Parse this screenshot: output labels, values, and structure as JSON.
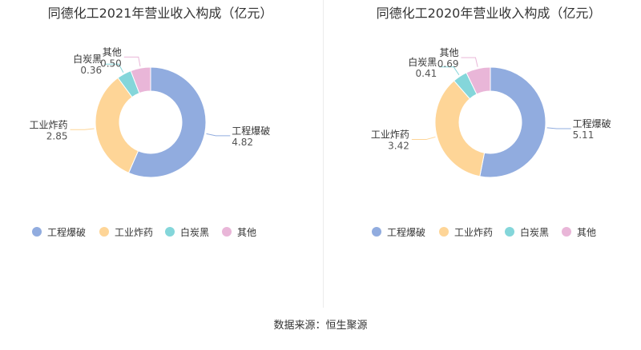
{
  "source_text": "数据来源：恒生聚源",
  "colors": [
    "#91acdf",
    "#fed597",
    "#84d6da",
    "#e9b6d8"
  ],
  "chart_data": [
    {
      "type": "pie",
      "title": "同德化工2021年营业收入构成（亿元）",
      "categories": [
        "工程爆破",
        "工业炸药",
        "白炭黑",
        "其他"
      ],
      "values": [
        4.82,
        2.85,
        0.36,
        0.5
      ],
      "value_labels": [
        "4.82",
        "2.85",
        "0.36",
        "0.50"
      ],
      "donut": true,
      "legend_position": "bottom"
    },
    {
      "type": "pie",
      "title": "同德化工2020年营业收入构成（亿元）",
      "categories": [
        "工程爆破",
        "工业炸药",
        "白炭黑",
        "其他"
      ],
      "values": [
        5.11,
        3.42,
        0.41,
        0.69
      ],
      "value_labels": [
        "5.11",
        "3.42",
        "0.41",
        "0.69"
      ],
      "donut": true,
      "legend_position": "bottom"
    }
  ]
}
